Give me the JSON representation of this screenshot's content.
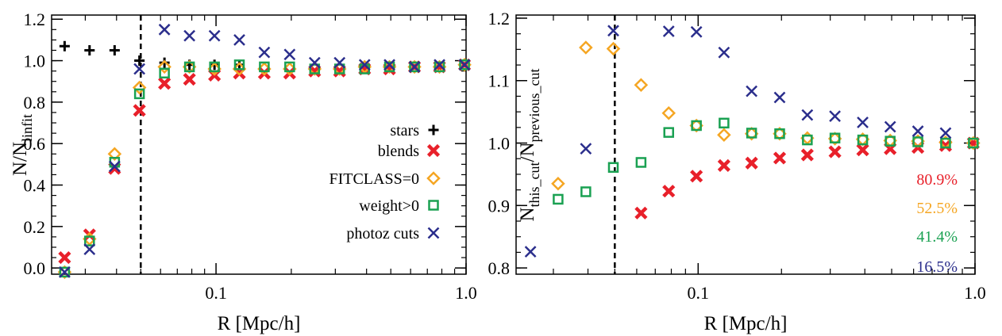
{
  "chart_data": [
    {
      "type": "scatter",
      "xscale": "log",
      "xlim": [
        0.022,
        1.0
      ],
      "ylim": [
        -0.03,
        1.22
      ],
      "xticks": [
        0.1,
        1.0
      ],
      "xtick_labels": [
        "0.1",
        "1.0"
      ],
      "yticks": [
        0.0,
        0.2,
        0.4,
        0.6,
        0.8,
        1.0,
        1.2
      ],
      "ytick_labels": [
        "0.0",
        "0.2",
        "0.4",
        "0.6",
        "0.8",
        "1.0",
        "1.2"
      ],
      "xlabel": "R [Mpc/h]",
      "ylabel_main": "N/N",
      "ylabel_sub": "linfit",
      "vline_x": 0.05,
      "legend_position": "center-right",
      "series": [
        {
          "name": "stars",
          "marker": "plus",
          "color": "#000000",
          "x": [
            0.0248,
            0.0312,
            0.0393,
            0.0494,
            0.0622,
            0.0783,
            0.0986,
            0.124
          ],
          "y": [
            1.07,
            1.05,
            1.05,
            1.0,
            0.99,
            0.98,
            0.98,
            0.98
          ]
        },
        {
          "name": "blends",
          "marker": "x-thick",
          "color": "#e8202a",
          "x": [
            0.0248,
            0.0312,
            0.0393,
            0.0494,
            0.0622,
            0.0783,
            0.0986,
            0.124,
            0.156,
            0.197,
            0.248,
            0.312,
            0.393,
            0.494,
            0.622,
            0.783,
            0.986
          ],
          "y": [
            0.05,
            0.16,
            0.48,
            0.76,
            0.89,
            0.91,
            0.93,
            0.94,
            0.94,
            0.94,
            0.95,
            0.95,
            0.96,
            0.96,
            0.97,
            0.97,
            0.98
          ]
        },
        {
          "name": "FITCLASS=0",
          "marker": "diamond",
          "color": "#f5a623",
          "x": [
            0.0248,
            0.0312,
            0.0393,
            0.0494,
            0.0622,
            0.0783,
            0.0986,
            0.124,
            0.156,
            0.197,
            0.248,
            0.312,
            0.393,
            0.494,
            0.622,
            0.783,
            0.986
          ],
          "y": [
            -0.02,
            0.14,
            0.55,
            0.87,
            0.97,
            0.97,
            0.96,
            0.96,
            0.96,
            0.96,
            0.96,
            0.96,
            0.97,
            0.97,
            0.97,
            0.97,
            0.98
          ]
        },
        {
          "name": "weight>0",
          "marker": "square",
          "color": "#1aa152",
          "x": [
            0.0248,
            0.0312,
            0.0393,
            0.0494,
            0.0622,
            0.0783,
            0.0986,
            0.124,
            0.156,
            0.197,
            0.248,
            0.312,
            0.393,
            0.494,
            0.622,
            0.783,
            0.986
          ],
          "y": [
            -0.02,
            0.13,
            0.51,
            0.84,
            0.94,
            0.97,
            0.97,
            0.98,
            0.97,
            0.97,
            0.96,
            0.96,
            0.96,
            0.97,
            0.97,
            0.97,
            0.98
          ]
        },
        {
          "name": "photoz cuts",
          "marker": "x",
          "color": "#2b2e8c",
          "x": [
            0.0248,
            0.0312,
            0.0393,
            0.0494,
            0.0622,
            0.0783,
            0.0986,
            0.124,
            0.156,
            0.197,
            0.248,
            0.312,
            0.393,
            0.494,
            0.622,
            0.783,
            0.986
          ],
          "y": [
            -0.02,
            0.09,
            0.49,
            0.96,
            1.15,
            1.12,
            1.12,
            1.1,
            1.04,
            1.03,
            0.99,
            0.99,
            0.98,
            0.98,
            0.97,
            0.98,
            0.98
          ]
        }
      ]
    },
    {
      "type": "scatter",
      "xscale": "log",
      "xlim": [
        0.022,
        1.0
      ],
      "ylim": [
        0.79,
        1.205
      ],
      "xticks": [
        0.1,
        1.0
      ],
      "xtick_labels": [
        "0.1",
        "1.0"
      ],
      "yticks": [
        0.8,
        0.9,
        1.0,
        1.1,
        1.2
      ],
      "ytick_labels": [
        "0.8",
        "0.9",
        "1.0",
        "1.1",
        "1.2"
      ],
      "xlabel": "R [Mpc/h]",
      "ylabel_parts": [
        "N",
        "this_cut",
        "/N",
        "previous_cut"
      ],
      "vline_x": 0.05,
      "series": [
        {
          "marker": "x-thick",
          "color": "#e8202a",
          "x": [
            0.0622,
            0.0783,
            0.0986,
            0.124,
            0.156,
            0.197,
            0.248,
            0.312,
            0.393,
            0.494,
            0.622,
            0.783,
            0.986
          ],
          "y": [
            0.888,
            0.923,
            0.947,
            0.964,
            0.968,
            0.976,
            0.981,
            0.986,
            0.989,
            0.991,
            0.993,
            0.996,
            1.0
          ]
        },
        {
          "marker": "diamond",
          "color": "#f5a623",
          "x": [
            0.0312,
            0.0393,
            0.0494,
            0.0622,
            0.0783,
            0.0986,
            0.124,
            0.156,
            0.197,
            0.248,
            0.312,
            0.393,
            0.494,
            0.622,
            0.783,
            0.986
          ],
          "y": [
            0.935,
            1.153,
            1.151,
            1.093,
            1.048,
            1.028,
            1.013,
            1.015,
            1.015,
            1.008,
            1.007,
            1.006,
            1.004,
            1.003,
            1.001,
            1.0
          ]
        },
        {
          "marker": "square",
          "color": "#1aa152",
          "x": [
            0.0312,
            0.0393,
            0.0494,
            0.0622,
            0.0783,
            0.0986,
            0.124,
            0.156,
            0.197,
            0.248,
            0.312,
            0.393,
            0.494,
            0.622,
            0.783,
            0.986
          ],
          "y": [
            0.91,
            0.922,
            0.961,
            0.969,
            1.017,
            1.028,
            1.032,
            1.016,
            1.015,
            1.005,
            1.008,
            1.005,
            1.003,
            1.002,
            1.0,
            1.0
          ]
        },
        {
          "marker": "x",
          "color": "#2b2e8c",
          "x": [
            0.0248,
            0.0393,
            0.0494,
            0.0783,
            0.0986,
            0.124,
            0.156,
            0.197,
            0.248,
            0.312,
            0.393,
            0.494,
            0.622,
            0.783
          ],
          "y": [
            0.826,
            0.991,
            1.18,
            1.179,
            1.178,
            1.145,
            1.083,
            1.073,
            1.045,
            1.043,
            1.033,
            1.026,
            1.019,
            1.016
          ]
        }
      ],
      "annotations": [
        {
          "text": "80.9%",
          "color": "#e8202a"
        },
        {
          "text": "52.5%",
          "color": "#f5a623"
        },
        {
          "text": "41.4%",
          "color": "#1aa152"
        },
        {
          "text": "16.5%",
          "color": "#2b2e8c"
        }
      ]
    }
  ]
}
